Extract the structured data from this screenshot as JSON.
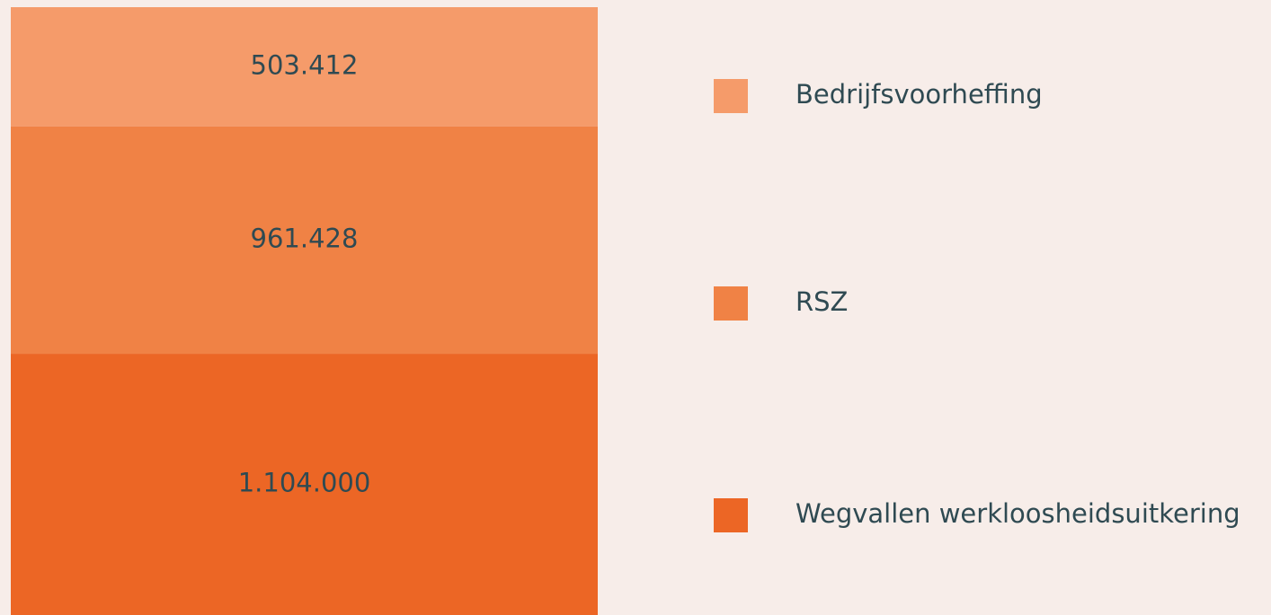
{
  "chart_data": {
    "type": "stacked-bar",
    "series": [
      {
        "name": "Bedrijfsvoorheffing",
        "color": "#f59b6a",
        "values": [
          503412
        ],
        "value_labels": [
          "503.412"
        ]
      },
      {
        "name": "RSZ",
        "color": "#f08245",
        "values": [
          961428
        ],
        "value_labels": [
          "961.428"
        ]
      },
      {
        "name": "Wegvallen werkloosheidsuitkering",
        "color": "#ec6625",
        "values": [
          1104000
        ],
        "value_labels": [
          "1.104.000"
        ]
      }
    ]
  }
}
